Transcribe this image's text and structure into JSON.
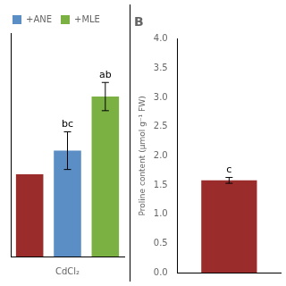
{
  "chart_data": [
    {
      "type": "bar",
      "categories": [
        null,
        "CdCl₂",
        null
      ],
      "series": [
        {
          "color": "#9b2c2c",
          "values": [
            3.05,
            null,
            null
          ]
        },
        {
          "name": "+ANE",
          "color": "#5b8ec4",
          "values": [
            null,
            3.15,
            null
          ],
          "errors": [
            null,
            0.08,
            null
          ],
          "letters": [
            null,
            "bc",
            null
          ]
        },
        {
          "name": "+MLE",
          "color": "#7bb142",
          "values": [
            null,
            null,
            3.38
          ],
          "errors": [
            null,
            null,
            0.06
          ],
          "letters": [
            null,
            null,
            "ab"
          ]
        }
      ],
      "ylim": [
        2.7,
        3.65
      ],
      "tick_labels": "x",
      "legend": "upper left",
      "grid": false
    },
    {
      "type": "bar",
      "title": "B",
      "categories": [
        null
      ],
      "values": [
        1.58
      ],
      "errors": [
        0.05
      ],
      "letters": [
        "c"
      ],
      "color": "#9b2c2c",
      "ylabel": "Proline content (μmol g⁻¹ FW)",
      "ylim": [
        0.0,
        4.0
      ],
      "yticks": [
        {
          "value": 0,
          "label": "0.0"
        },
        0.5,
        {
          "value": 1,
          "label": "1.0"
        },
        1.5,
        {
          "value": 2,
          "label": "2.0"
        },
        2.5,
        {
          "value": 3,
          "label": "3.0"
        },
        3.5,
        {
          "value": 4,
          "label": "4.0"
        }
      ],
      "tick_labels": "y",
      "grid": false
    }
  ]
}
